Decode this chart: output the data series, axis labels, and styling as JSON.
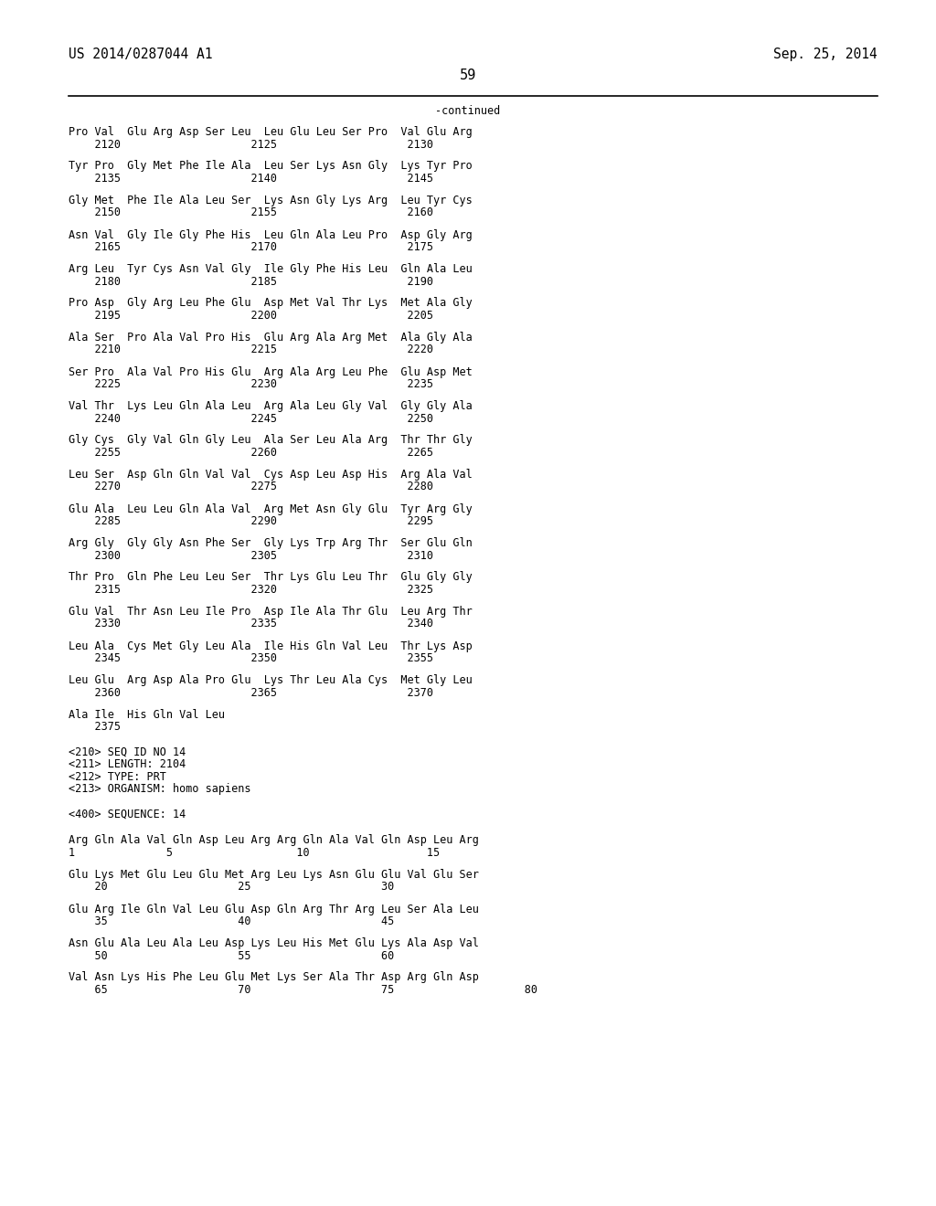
{
  "bg_color": "#ffffff",
  "header_left": "US 2014/0287044 A1",
  "header_right": "Sep. 25, 2014",
  "page_number": "59",
  "continued_text": "-continued",
  "font_size_header": 10.5,
  "font_size_body": 8.5,
  "font_size_page": 11,
  "seq_pairs": [
    [
      "Pro Val  Glu Arg Asp Ser Leu  Leu Glu Leu Ser Pro  Val Glu Arg",
      "    2120                    2125                    2130"
    ],
    [
      "Tyr Pro  Gly Met Phe Ile Ala  Leu Ser Lys Asn Gly  Lys Tyr Pro",
      "    2135                    2140                    2145"
    ],
    [
      "Gly Met  Phe Ile Ala Leu Ser  Lys Asn Gly Lys Arg  Leu Tyr Cys",
      "    2150                    2155                    2160"
    ],
    [
      "Asn Val  Gly Ile Gly Phe His  Leu Gln Ala Leu Pro  Asp Gly Arg",
      "    2165                    2170                    2175"
    ],
    [
      "Arg Leu  Tyr Cys Asn Val Gly  Ile Gly Phe His Leu  Gln Ala Leu",
      "    2180                    2185                    2190"
    ],
    [
      "Pro Asp  Gly Arg Leu Phe Glu  Asp Met Val Thr Lys  Met Ala Gly",
      "    2195                    2200                    2205"
    ],
    [
      "Ala Ser  Pro Ala Val Pro His  Glu Arg Ala Arg Met  Ala Gly Ala",
      "    2210                    2215                    2220"
    ],
    [
      "Ser Pro  Ala Val Pro His Glu  Arg Ala Arg Leu Phe  Glu Asp Met",
      "    2225                    2230                    2235"
    ],
    [
      "Val Thr  Lys Leu Gln Ala Leu  Arg Ala Leu Gly Val  Gly Gly Ala",
      "    2240                    2245                    2250"
    ],
    [
      "Gly Cys  Gly Val Gln Gly Leu  Ala Ser Leu Ala Arg  Thr Thr Gly",
      "    2255                    2260                    2265"
    ],
    [
      "Leu Ser  Asp Gln Gln Val Val  Cys Asp Leu Asp His  Arg Ala Val",
      "    2270                    2275                    2280"
    ],
    [
      "Glu Ala  Leu Leu Gln Ala Val  Arg Met Asn Gly Glu  Tyr Arg Gly",
      "    2285                    2290                    2295"
    ],
    [
      "Arg Gly  Gly Gly Asn Phe Ser  Gly Lys Trp Arg Thr  Ser Glu Gln",
      "    2300                    2305                    2310"
    ],
    [
      "Thr Pro  Gln Phe Leu Leu Ser  Thr Lys Glu Leu Thr  Glu Gly Gly",
      "    2315                    2320                    2325"
    ],
    [
      "Glu Val  Thr Asn Leu Ile Pro  Asp Ile Ala Thr Glu  Leu Arg Thr",
      "    2330                    2335                    2340"
    ],
    [
      "Leu Ala  Cys Met Gly Leu Ala  Ile His Gln Val Leu  Thr Lys Asp",
      "    2345                    2350                    2355"
    ],
    [
      "Leu Glu  Arg Asp Ala Pro Glu  Lys Thr Leu Ala Cys  Met Gly Leu",
      "    2360                    2365                    2370"
    ],
    [
      "Ala Ile  His Gln Val Leu",
      "    2375"
    ]
  ],
  "metadata": [
    "<210> SEQ ID NO 14",
    "<211> LENGTH: 2104",
    "<212> TYPE: PRT",
    "<213> ORGANISM: homo sapiens",
    "",
    "<400> SEQUENCE: 14",
    ""
  ],
  "seq14_pairs": [
    [
      "Arg Gln Ala Val Gln Asp Leu Arg Arg Gln Ala Val Gln Asp Leu Arg",
      "1              5                   10                  15"
    ],
    [
      "Glu Lys Met Glu Leu Glu Met Arg Leu Lys Asn Glu Glu Val Glu Ser",
      "    20                    25                    30"
    ],
    [
      "Glu Arg Ile Gln Val Leu Glu Asp Gln Arg Thr Arg Leu Ser Ala Leu",
      "    35                    40                    45"
    ],
    [
      "Asn Glu Ala Leu Ala Leu Asp Lys Leu His Met Glu Lys Ala Asp Val",
      "    50                    55                    60"
    ],
    [
      "Val Asn Lys His Phe Leu Glu Met Lys Ser Ala Thr Asp Arg Gln Asp",
      "    65                    70                    75                    80"
    ]
  ]
}
